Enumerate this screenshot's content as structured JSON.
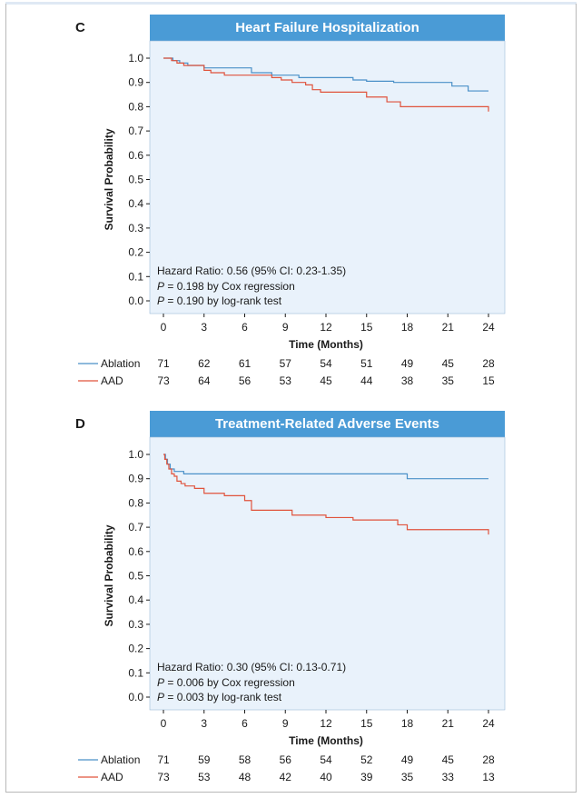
{
  "chart_data": [
    {
      "panel": "C",
      "type": "line",
      "title": "Heart Failure Hospitalization",
      "xlabel": "Time (Months)",
      "ylabel": "Survival Probability",
      "xlim": [
        0,
        24
      ],
      "ylim": [
        0,
        1
      ],
      "x_ticks": [
        0,
        3,
        6,
        9,
        12,
        15,
        18,
        21,
        24
      ],
      "y_ticks": [
        "0.0",
        "0.1",
        "0.2",
        "0.3",
        "0.4",
        "0.5",
        "0.6",
        "0.7",
        "0.8",
        "0.9",
        "1.0"
      ],
      "grid": false,
      "series": [
        {
          "name": "Ablation",
          "color": "#4a90c8",
          "x": [
            0,
            0.7,
            1.2,
            1.8,
            3.0,
            4.5,
            6.5,
            8.0,
            10.0,
            12.0,
            14.0,
            15.0,
            17.0,
            20.0,
            21.3,
            22.5,
            24.0
          ],
          "y": [
            1.0,
            0.99,
            0.98,
            0.97,
            0.96,
            0.96,
            0.94,
            0.93,
            0.92,
            0.92,
            0.91,
            0.905,
            0.9,
            0.9,
            0.885,
            0.865,
            0.865
          ]
        },
        {
          "name": "AAD",
          "color": "#e0533c",
          "x": [
            0,
            0.6,
            1.0,
            1.5,
            3.0,
            3.5,
            4.5,
            6.0,
            8.0,
            8.7,
            9.5,
            10.5,
            11.0,
            11.6,
            14.0,
            15.0,
            16.5,
            17.5,
            24.0
          ],
          "y": [
            1.0,
            0.99,
            0.98,
            0.97,
            0.95,
            0.94,
            0.93,
            0.93,
            0.92,
            0.91,
            0.9,
            0.89,
            0.87,
            0.86,
            0.86,
            0.84,
            0.82,
            0.8,
            0.78
          ]
        }
      ],
      "annotation": {
        "line1": "Hazard Ratio: 0.56 (95% CI: 0.23-1.35)",
        "line2_p": "P",
        "line2": " = 0.198 by Cox regression",
        "line3_p": "P",
        "line3": " = 0.190 by log-rank test"
      },
      "risk_table": [
        {
          "name": "Ablation",
          "counts": [
            "71",
            "62",
            "61",
            "57",
            "54",
            "51",
            "49",
            "45",
            "28"
          ]
        },
        {
          "name": "AAD",
          "counts": [
            "73",
            "64",
            "56",
            "53",
            "45",
            "44",
            "38",
            "35",
            "15"
          ]
        }
      ]
    },
    {
      "panel": "D",
      "type": "line",
      "title": "Treatment-Related Adverse Events",
      "xlabel": "Time (Months)",
      "ylabel": "Survival Probability",
      "xlim": [
        0,
        24
      ],
      "ylim": [
        0,
        1
      ],
      "x_ticks": [
        0,
        3,
        6,
        9,
        12,
        15,
        18,
        21,
        24
      ],
      "y_ticks": [
        "0.0",
        "0.1",
        "0.2",
        "0.3",
        "0.4",
        "0.5",
        "0.6",
        "0.7",
        "0.8",
        "0.9",
        "1.0"
      ],
      "grid": false,
      "series": [
        {
          "name": "Ablation",
          "color": "#4a90c8",
          "x": [
            0,
            0.15,
            0.3,
            0.5,
            0.8,
            1.5,
            17.5,
            18.0,
            24.0
          ],
          "y": [
            1.0,
            0.98,
            0.96,
            0.94,
            0.93,
            0.92,
            0.92,
            0.9,
            0.895
          ],
          "step_x": [
            0,
            0.15,
            0.3,
            0.5,
            0.8,
            1.5,
            18.0,
            24.0
          ],
          "step_y": [
            1.0,
            0.98,
            0.96,
            0.94,
            0.93,
            0.92,
            0.9,
            0.9
          ]
        },
        {
          "name": "AAD",
          "color": "#e0533c",
          "x": [
            0,
            0.1,
            0.25,
            0.4,
            0.6,
            0.8,
            1.0,
            1.3,
            1.6,
            2.3,
            3.0,
            4.5,
            6.0,
            6.5,
            9.5,
            12.0,
            14.0,
            16.5,
            17.3,
            18.0,
            24.0
          ],
          "y": [
            1.0,
            0.98,
            0.96,
            0.94,
            0.92,
            0.91,
            0.89,
            0.88,
            0.87,
            0.86,
            0.84,
            0.83,
            0.81,
            0.77,
            0.75,
            0.74,
            0.73,
            0.73,
            0.71,
            0.69,
            0.67
          ]
        }
      ],
      "annotation": {
        "line1": "Hazard Ratio: 0.30 (95% CI: 0.13-0.71)",
        "line2_p": "P",
        "line2": " = 0.006 by Cox regression",
        "line3_p": "P",
        "line3": " = 0.003 by log-rank test"
      },
      "risk_table": [
        {
          "name": "Ablation",
          "counts": [
            "71",
            "59",
            "58",
            "56",
            "54",
            "52",
            "49",
            "45",
            "28"
          ]
        },
        {
          "name": "AAD",
          "counts": [
            "73",
            "53",
            "48",
            "42",
            "40",
            "39",
            "35",
            "33",
            "13"
          ]
        }
      ]
    }
  ],
  "panels": [
    {
      "letter": "C"
    },
    {
      "letter": "D"
    }
  ],
  "colors": {
    "title_bar": "#4a9bd6",
    "plot_bg": "#e9f2fb",
    "ablation": "#4a90c8",
    "aad": "#e0533c"
  }
}
